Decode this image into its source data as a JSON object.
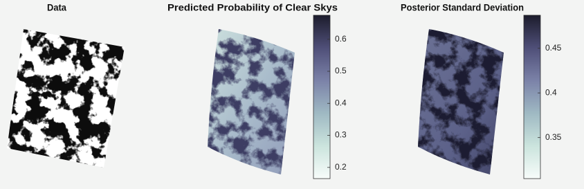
{
  "chart_data": [
    {
      "type": "image",
      "title": "Data"
    },
    {
      "type": "heatmap",
      "title": "Predicted Probability of Clear Skys",
      "clim": [
        0.165,
        0.675
      ],
      "cticks": [
        0.2,
        0.3,
        0.4,
        0.5,
        0.6
      ],
      "colormap": [
        "#f7fcfa",
        "#cbe4dd",
        "#9fb9c3",
        "#7b82a8",
        "#4f4f78",
        "#1c1c2c"
      ]
    },
    {
      "type": "heatmap",
      "title": "Posterior Standard Deviation",
      "clim": [
        0.304,
        0.487
      ],
      "cticks": [
        0.35,
        0.4,
        0.45
      ],
      "colormap": [
        "#f7fcfa",
        "#cbe4dd",
        "#9fb9c3",
        "#7b82a8",
        "#4f4f78",
        "#1c1c2c"
      ]
    }
  ]
}
